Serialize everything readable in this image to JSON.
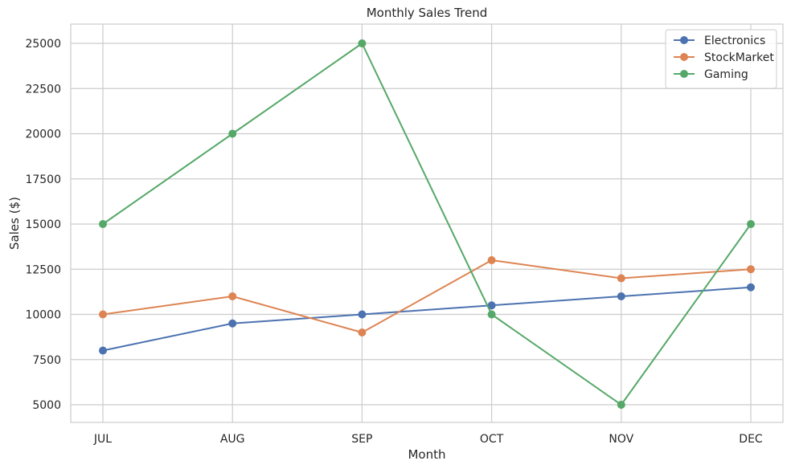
{
  "chart_data": {
    "type": "line",
    "title": "Monthly Sales Trend",
    "xlabel": "Month",
    "ylabel": "Sales ($)",
    "categories": [
      "JUL",
      "AUG",
      "SEP",
      "OCT",
      "NOV",
      "DEC"
    ],
    "ylim": [
      4000,
      26000
    ],
    "yticks": [
      5000,
      7500,
      10000,
      12500,
      15000,
      17500,
      20000,
      22500,
      25000
    ],
    "grid": true,
    "legend_position": "top-right",
    "marker": "circle",
    "series": [
      {
        "name": "Electronics",
        "color": "#4c72b0",
        "values": [
          8000,
          9500,
          10000,
          10500,
          11000,
          11500
        ]
      },
      {
        "name": "StockMarket",
        "color": "#dd8452",
        "values": [
          10000,
          11000,
          9000,
          13000,
          12000,
          12500
        ]
      },
      {
        "name": "Gaming",
        "color": "#55a868",
        "values": [
          15000,
          20000,
          25000,
          10000,
          5000,
          15000
        ]
      }
    ]
  }
}
